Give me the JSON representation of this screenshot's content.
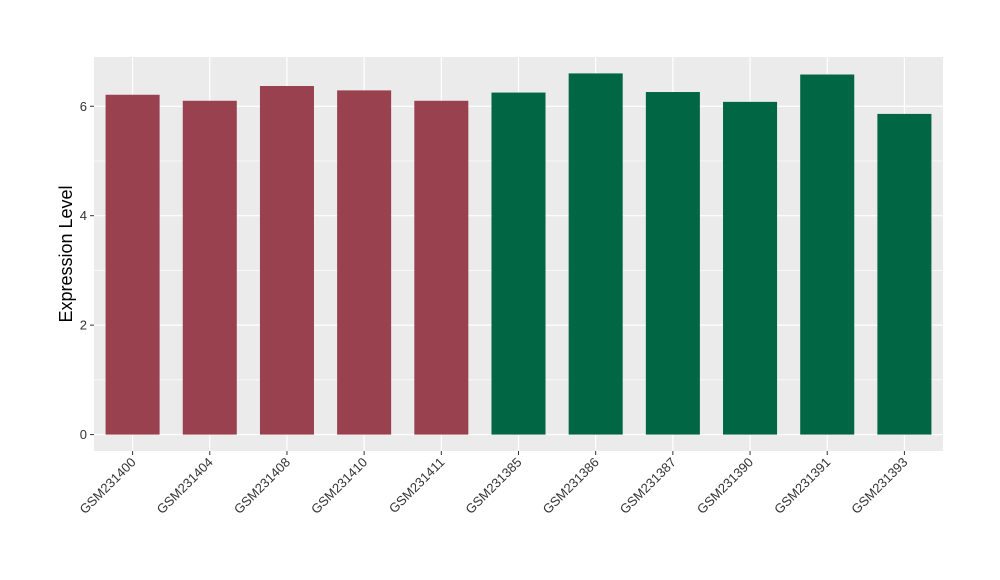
{
  "chart_data": {
    "type": "bar",
    "title": "",
    "xlabel": "",
    "ylabel": "Expression Level",
    "ylim": [
      -0.3,
      6.9
    ],
    "yticks": [
      0,
      2,
      4,
      6
    ],
    "grid": true,
    "panel_background": "#EBEBEB",
    "categories": [
      "GSM231400",
      "GSM231404",
      "GSM231408",
      "GSM231410",
      "GSM231411",
      "GSM231385",
      "GSM231386",
      "GSM231387",
      "GSM231390",
      "GSM231391",
      "GSM231393"
    ],
    "values": [
      6.21,
      6.1,
      6.37,
      6.29,
      6.1,
      6.25,
      6.6,
      6.26,
      6.08,
      6.58,
      5.86
    ],
    "bar_colors": [
      "#99414F",
      "#99414F",
      "#99414F",
      "#99414F",
      "#99414F",
      "#006644",
      "#006644",
      "#006644",
      "#006644",
      "#006644",
      "#006644"
    ]
  }
}
